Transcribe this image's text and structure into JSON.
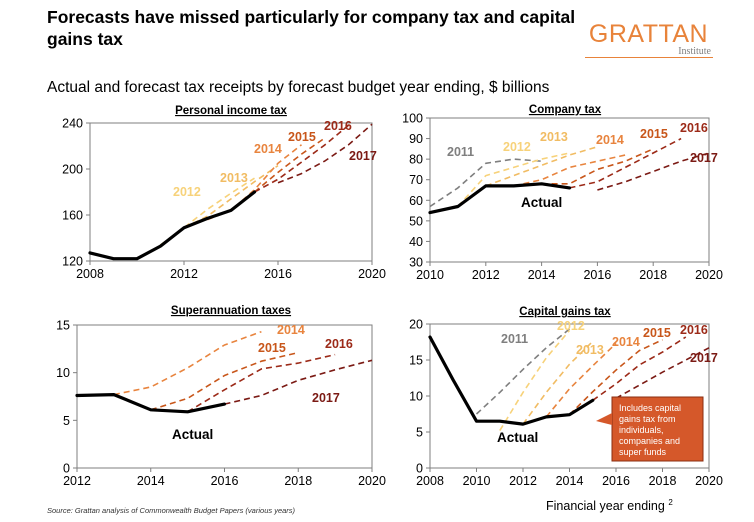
{
  "header": {
    "title": "Forecasts have missed particularly for company tax and capital gains tax",
    "subtitle": "Actual and forecast tax receipts by forecast budget year ending, $ billions",
    "brand_name": "GRATTAN",
    "brand_sub": "Institute"
  },
  "footer": {
    "source": "Source: Grattan analysis of Commonwealth Budget Papers (various years)",
    "xaxis_note": "Financial year ending",
    "page_number": "2"
  },
  "colors": {
    "actual": "#000000",
    "f2011": "#7F7F7F",
    "f2012": "#F7D27A",
    "f2013": "#F1BC63",
    "f2014": "#E8843E",
    "f2015": "#C8561A",
    "f2016": "#9C2A18",
    "f2017": "#7B1A14",
    "callout": "#D5582A"
  },
  "chart_data": [
    {
      "type": "line",
      "title": "Personal income tax",
      "xlim": [
        2008,
        2020
      ],
      "ylim": [
        120,
        240
      ],
      "xticks": [
        "2008",
        "2012",
        "2016",
        "2020"
      ],
      "yticks": [
        "120",
        "160",
        "200",
        "240"
      ],
      "series": [
        {
          "name": "Actual",
          "x": [
            2008,
            2009,
            2010,
            2011,
            2012,
            2013,
            2014,
            2015
          ],
          "y": [
            127,
            122,
            122,
            133,
            149,
            157,
            164,
            180
          ]
        },
        {
          "name": "2012",
          "x": [
            2011,
            2012,
            2013,
            2014,
            2015
          ],
          "y": [
            134,
            149,
            165,
            179,
            192
          ]
        },
        {
          "name": "2013",
          "x": [
            2012,
            2013,
            2014,
            2015,
            2016
          ],
          "y": [
            149,
            159,
            174,
            189,
            203
          ]
        },
        {
          "name": "2014",
          "x": [
            2013,
            2014,
            2015,
            2016,
            2017
          ],
          "y": [
            156,
            164,
            182,
            205,
            221
          ]
        },
        {
          "name": "2015",
          "x": [
            2014,
            2015,
            2016,
            2017,
            2018
          ],
          "y": [
            164,
            180,
            197,
            213,
            227
          ]
        },
        {
          "name": "2016",
          "x": [
            2015,
            2016,
            2017,
            2018,
            2019
          ],
          "y": [
            180,
            191,
            206,
            221,
            238
          ]
        },
        {
          "name": "2017",
          "x": [
            2016,
            2017,
            2018,
            2019,
            2020
          ],
          "y": [
            188,
            196,
            207,
            221,
            239
          ]
        }
      ],
      "labels": [
        "2012",
        "2013",
        "2014",
        "2015",
        "2016",
        "2017"
      ]
    },
    {
      "type": "line",
      "title": "Company tax",
      "xlim": [
        2010,
        2020
      ],
      "ylim": [
        30,
        100
      ],
      "xticks": [
        "2010",
        "2012",
        "2014",
        "2016",
        "2018",
        "2020"
      ],
      "yticks": [
        "30",
        "40",
        "50",
        "60",
        "70",
        "80",
        "90",
        "100"
      ],
      "series": [
        {
          "name": "Actual",
          "x": [
            2010,
            2011,
            2012,
            2013,
            2014,
            2015
          ],
          "y": [
            54,
            57,
            67,
            67,
            68,
            66
          ]
        },
        {
          "name": "2011",
          "x": [
            2010,
            2011,
            2012,
            2013,
            2014
          ],
          "y": [
            57,
            66,
            78,
            80,
            79
          ]
        },
        {
          "name": "2012",
          "x": [
            2011,
            2012,
            2013,
            2014,
            2015
          ],
          "y": [
            57,
            72,
            76,
            80,
            83
          ]
        },
        {
          "name": "2013",
          "x": [
            2012,
            2013,
            2014,
            2015,
            2016
          ],
          "y": [
            67,
            72,
            77,
            82,
            86
          ]
        },
        {
          "name": "2014",
          "x": [
            2013,
            2014,
            2015,
            2016,
            2017
          ],
          "y": [
            67,
            70,
            76,
            79,
            82
          ]
        },
        {
          "name": "2015",
          "x": [
            2014,
            2015,
            2016,
            2017,
            2018
          ],
          "y": [
            68,
            68,
            75,
            79,
            85
          ]
        },
        {
          "name": "2016",
          "x": [
            2015,
            2016,
            2017,
            2018,
            2019
          ],
          "y": [
            66,
            69,
            76,
            83,
            90
          ]
        },
        {
          "name": "2017",
          "x": [
            2016,
            2017,
            2018,
            2019,
            2020
          ],
          "y": [
            65,
            69,
            74,
            79,
            83
          ]
        }
      ],
      "labels": [
        "2011",
        "2012",
        "2013",
        "2014",
        "2015",
        "2016",
        "2017"
      ],
      "annotation": "Actual"
    },
    {
      "type": "line",
      "title": "Superannuation taxes",
      "xlim": [
        2012,
        2020
      ],
      "ylim": [
        0,
        15
      ],
      "xticks": [
        "2012",
        "2014",
        "2016",
        "2018",
        "2020"
      ],
      "yticks": [
        "0",
        "5",
        "10",
        "15"
      ],
      "series": [
        {
          "name": "Actual",
          "x": [
            2012,
            2013,
            2014,
            2015,
            2016
          ],
          "y": [
            7.6,
            7.7,
            6.1,
            5.9,
            6.7
          ]
        },
        {
          "name": "2014",
          "x": [
            2013,
            2014,
            2015,
            2016,
            2017
          ],
          "y": [
            7.7,
            8.5,
            10.5,
            12.9,
            14.3
          ]
        },
        {
          "name": "2015",
          "x": [
            2014,
            2015,
            2016,
            2017,
            2018
          ],
          "y": [
            6.1,
            7.3,
            9.7,
            11.2,
            12.1
          ]
        },
        {
          "name": "2016",
          "x": [
            2015,
            2016,
            2017,
            2018,
            2019
          ],
          "y": [
            5.9,
            8.2,
            10.4,
            11.0,
            11.9
          ]
        },
        {
          "name": "2017",
          "x": [
            2016,
            2017,
            2018,
            2019,
            2020
          ],
          "y": [
            6.7,
            7.6,
            9.2,
            10.3,
            11.3
          ]
        }
      ],
      "labels": [
        "2014",
        "2015",
        "2016",
        "2017"
      ],
      "annotation": "Actual"
    },
    {
      "type": "line",
      "title": "Capital gains tax",
      "xlim": [
        2008,
        2020
      ],
      "ylim": [
        0,
        20
      ],
      "xticks": [
        "2008",
        "2010",
        "2012",
        "2014",
        "2016",
        "2018",
        "2020"
      ],
      "yticks": [
        "0",
        "5",
        "10",
        "15",
        "20"
      ],
      "series": [
        {
          "name": "Actual",
          "x": [
            2008,
            2009,
            2010,
            2011,
            2012,
            2013,
            2014,
            2015
          ],
          "y": [
            18.2,
            12.2,
            6.5,
            6.5,
            6.1,
            7.1,
            7.4,
            9.4
          ]
        },
        {
          "name": "2011",
          "x": [
            2010,
            2011,
            2012,
            2013,
            2014
          ],
          "y": [
            7.5,
            10.5,
            13.7,
            16.7,
            19.3
          ]
        },
        {
          "name": "2012",
          "x": [
            2011,
            2012,
            2013,
            2014
          ],
          "y": [
            5.2,
            10.5,
            15.3,
            19.1
          ]
        },
        {
          "name": "2013",
          "x": [
            2012,
            2013,
            2014,
            2015
          ],
          "y": [
            6.1,
            10.5,
            14.4,
            17.6
          ]
        },
        {
          "name": "2014",
          "x": [
            2013,
            2014,
            2015,
            2016
          ],
          "y": [
            7.1,
            11.0,
            14.2,
            17.3
          ]
        },
        {
          "name": "2015",
          "x": [
            2014,
            2015,
            2016,
            2017,
            2018
          ],
          "y": [
            7.4,
            10.6,
            13.6,
            16.3,
            17.8
          ]
        },
        {
          "name": "2016",
          "x": [
            2015,
            2016,
            2017,
            2018,
            2019
          ],
          "y": [
            9.4,
            11.7,
            14.3,
            16.1,
            18.2
          ]
        },
        {
          "name": "2017",
          "x": [
            2016,
            2017,
            2018,
            2019,
            2020
          ],
          "y": [
            9.7,
            11.5,
            13.3,
            15.0,
            16.7
          ]
        }
      ],
      "labels": [
        "2011",
        "2012",
        "2013",
        "2014",
        "2015",
        "2016",
        "2017"
      ],
      "annotation": "Actual",
      "callout": "Includes capital gains tax from individuals, companies and super funds"
    }
  ]
}
